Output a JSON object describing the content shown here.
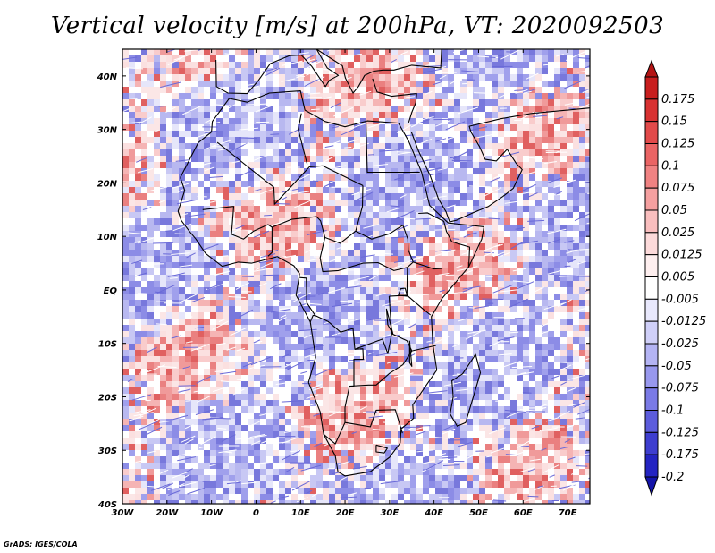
{
  "title": "Vertical velocity [m/s] at 200hPa, VT: 2020092503",
  "credit": "GrADS: IGES/COLA",
  "map": {
    "lon_range": [
      -30,
      75
    ],
    "lat_range": [
      -40,
      45
    ],
    "lon_ticks": [
      {
        "value": -30,
        "label": "30W"
      },
      {
        "value": -20,
        "label": "20W"
      },
      {
        "value": -10,
        "label": "10W"
      },
      {
        "value": 0,
        "label": "0"
      },
      {
        "value": 10,
        "label": "10E"
      },
      {
        "value": 20,
        "label": "20E"
      },
      {
        "value": 30,
        "label": "30E"
      },
      {
        "value": 40,
        "label": "40E"
      },
      {
        "value": 50,
        "label": "50E"
      },
      {
        "value": 60,
        "label": "60E"
      },
      {
        "value": 70,
        "label": "70E"
      }
    ],
    "lat_ticks": [
      {
        "value": 40,
        "label": "40N"
      },
      {
        "value": 30,
        "label": "30N"
      },
      {
        "value": 20,
        "label": "20N"
      },
      {
        "value": 10,
        "label": "10N"
      },
      {
        "value": 0,
        "label": "EQ"
      },
      {
        "value": -10,
        "label": "10S"
      },
      {
        "value": -20,
        "label": "20S"
      },
      {
        "value": -30,
        "label": "30S"
      },
      {
        "value": -40,
        "label": "40S"
      }
    ]
  },
  "colorbar": {
    "levels": [
      {
        "label": "0.175",
        "color": "#c81e1e"
      },
      {
        "label": "0.15",
        "color": "#d83232"
      },
      {
        "label": "0.125",
        "color": "#e24a4a"
      },
      {
        "label": "0.1",
        "color": "#ea6464"
      },
      {
        "label": "0.075",
        "color": "#f08282"
      },
      {
        "label": "0.05",
        "color": "#f5a0a0"
      },
      {
        "label": "0.025",
        "color": "#f9bebe"
      },
      {
        "label": "0.0125",
        "color": "#fcdada"
      },
      {
        "label": "0.005",
        "color": "#feefef"
      },
      {
        "label": "-0.005",
        "color": "#ffffff"
      },
      {
        "label": "-0.0125",
        "color": "#e8e8fc"
      },
      {
        "label": "-0.025",
        "color": "#cfcff8"
      },
      {
        "label": "-0.05",
        "color": "#b4b4f4"
      },
      {
        "label": "-0.075",
        "color": "#9898ee"
      },
      {
        "label": "-0.1",
        "color": "#7a7ae6"
      },
      {
        "label": "-0.125",
        "color": "#5c5cdc"
      },
      {
        "label": "-0.175",
        "color": "#3e3ed0"
      },
      {
        "label": "-0.2",
        "color": "#2424c2"
      }
    ],
    "top_color": "#b41414",
    "bottom_color": "#1414aa"
  }
}
